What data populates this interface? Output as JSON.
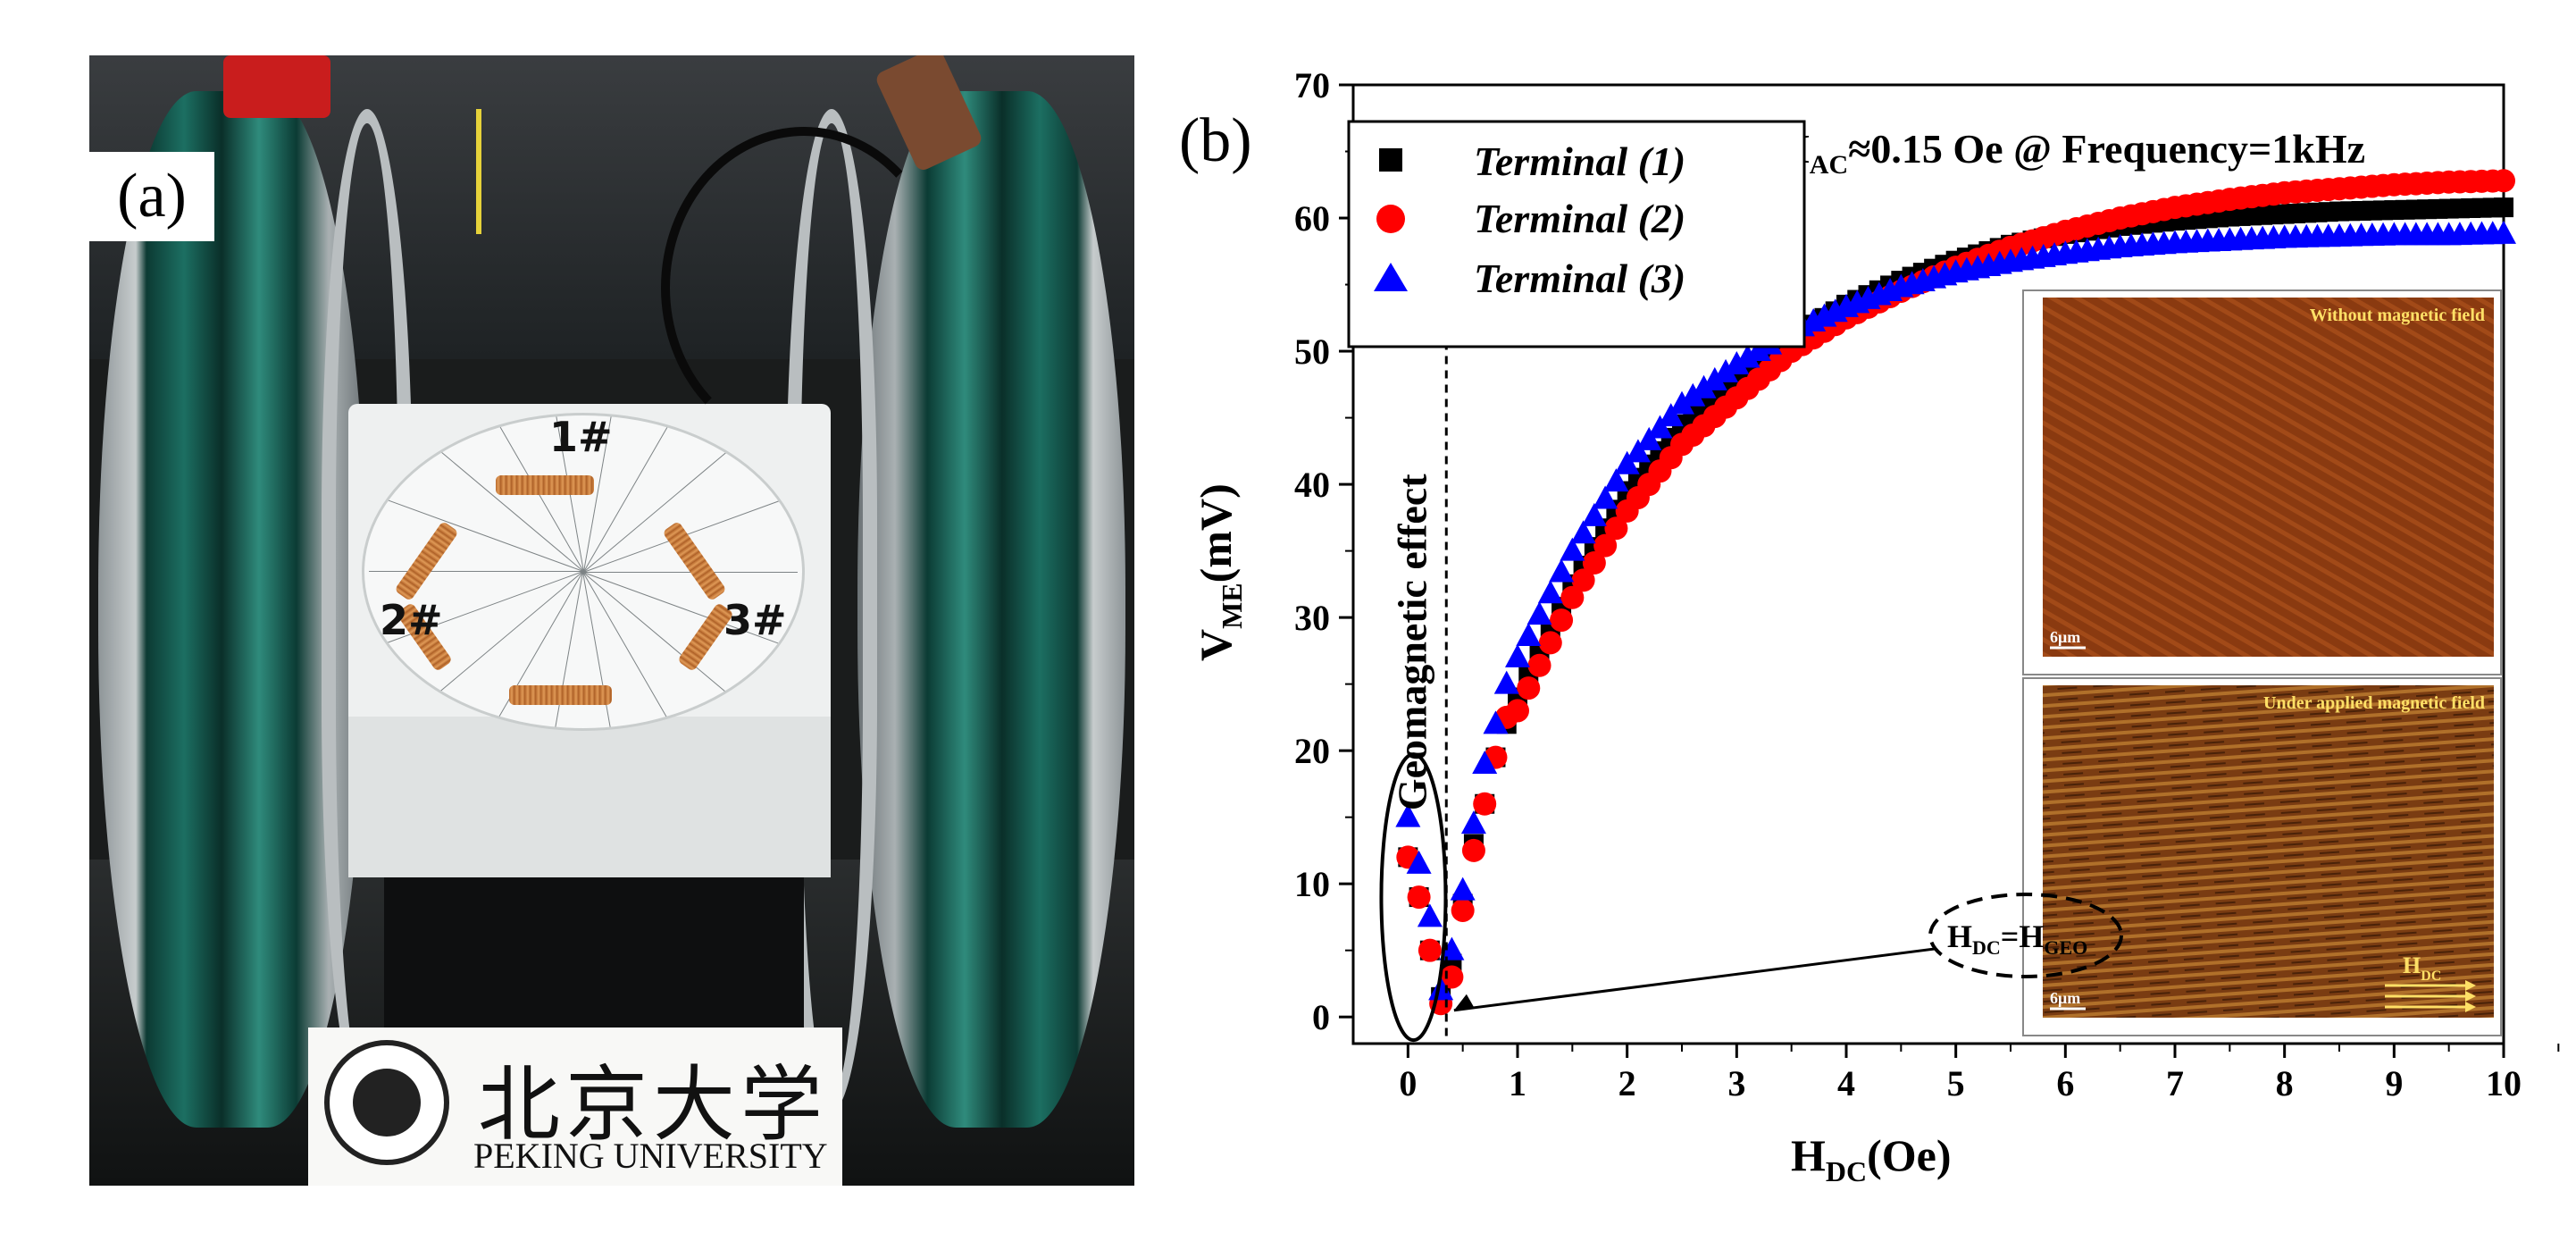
{
  "panel_a": {
    "label": "(a)",
    "coil_labels": [
      "1#",
      "2#",
      "3#"
    ],
    "logo": {
      "chinese_text": "北京大学",
      "english_text": "PEKING UNIVERSITY"
    }
  },
  "chart_data": {
    "type": "scatter",
    "panel_label": "(b)",
    "title": "H_AC≈0.15 Oe @ Frequency=1kHz",
    "title_parts": {
      "h": "H",
      "sub": "AC",
      "rest": "≈0.15 Oe @ Frequency=1kHz"
    },
    "xlabel": "H_DC(Oe)",
    "xlabel_parts": {
      "h": "H",
      "sub": "DC",
      "rest": "(Oe)"
    },
    "ylabel": "V_ME(mV)",
    "ylabel_parts": {
      "v": "V",
      "sub": "ME",
      "rest": "(mV)"
    },
    "xlim": [
      -0.5,
      10
    ],
    "ylim": [
      -2,
      70
    ],
    "x_ticks": [
      0,
      1,
      2,
      3,
      4,
      5,
      6,
      7,
      8,
      9,
      10
    ],
    "y_ticks": [
      0,
      10,
      20,
      30,
      40,
      50,
      60,
      70
    ],
    "grid": false,
    "legend_position": "top-left",
    "series": [
      {
        "name": "Terminal (1)",
        "marker": "square",
        "color": "#000000",
        "x": [
          0.0,
          0.1,
          0.2,
          0.3,
          0.4,
          0.5,
          0.6,
          0.7,
          0.8,
          0.9,
          1.0,
          1.5,
          2.0,
          2.5,
          3.0,
          3.5,
          4.0,
          4.5,
          5.0,
          5.5,
          6.0,
          6.5,
          7.0,
          7.5,
          8.0,
          8.5,
          9.0,
          9.5,
          10.0
        ],
        "y": [
          12.0,
          9.0,
          5.0,
          1.5,
          4.0,
          8.5,
          13.0,
          16.0,
          19.5,
          22.0,
          24.0,
          32.5,
          39.5,
          44.5,
          48.0,
          51.0,
          53.5,
          55.3,
          56.8,
          58.0,
          58.8,
          59.4,
          59.8,
          60.1,
          60.3,
          60.5,
          60.6,
          60.7,
          60.8
        ]
      },
      {
        "name": "Terminal (2)",
        "marker": "circle",
        "color": "#ff0000",
        "x": [
          0.0,
          0.1,
          0.2,
          0.3,
          0.4,
          0.5,
          0.6,
          0.7,
          0.8,
          0.9,
          1.0,
          1.5,
          2.0,
          2.5,
          3.0,
          3.5,
          4.0,
          4.5,
          5.0,
          5.5,
          6.0,
          6.5,
          7.0,
          7.5,
          8.0,
          8.5,
          9.0,
          9.5,
          10.0
        ],
        "y": [
          12.0,
          9.0,
          5.0,
          1.0,
          3.0,
          8.0,
          12.5,
          16.0,
          19.5,
          22.5,
          23.0,
          31.5,
          38.0,
          43.0,
          46.5,
          50.0,
          52.5,
          54.5,
          56.3,
          57.8,
          59.0,
          60.0,
          60.8,
          61.4,
          61.9,
          62.2,
          62.5,
          62.7,
          62.8
        ]
      },
      {
        "name": "Terminal (3)",
        "marker": "triangle",
        "color": "#0000ff",
        "x": [
          0.0,
          0.1,
          0.2,
          0.3,
          0.4,
          0.5,
          0.6,
          0.7,
          0.8,
          0.9,
          1.0,
          1.5,
          2.0,
          2.5,
          3.0,
          3.5,
          4.0,
          4.5,
          5.0,
          5.5,
          6.0,
          6.5,
          7.0,
          7.5,
          8.0,
          8.5,
          9.0,
          9.5,
          10.0
        ],
        "y": [
          15.0,
          11.5,
          7.5,
          2.0,
          5.0,
          9.5,
          14.5,
          19.0,
          22.0,
          25.0,
          27.0,
          35.0,
          41.5,
          46.0,
          49.0,
          51.5,
          53.3,
          54.8,
          55.9,
          56.7,
          57.3,
          57.8,
          58.1,
          58.3,
          58.5,
          58.6,
          58.7,
          58.7,
          58.8
        ]
      }
    ],
    "annotations": {
      "geomagnetic_label": "Geomagnetic effect",
      "hdc_eq_hgeo": {
        "h1": "H",
        "sub1": "DC",
        "eq": "=",
        "h2": "H",
        "sub2": "GEO"
      },
      "dashed_line_x": 0.35
    },
    "insets": [
      {
        "caption": "Without magnetic field",
        "scale_label": "6μm"
      },
      {
        "caption": "Under applied magnetic field",
        "scale_label": "6μm",
        "arrow_label": "H_DC",
        "arrow_parts": {
          "h": "H",
          "sub": "DC"
        }
      }
    ]
  },
  "colors": {
    "terminal1": "#000000",
    "terminal2": "#ff0000",
    "terminal3": "#0000ff",
    "inset_bg": "#8a3a10",
    "inset_caption": "#ffe066"
  }
}
